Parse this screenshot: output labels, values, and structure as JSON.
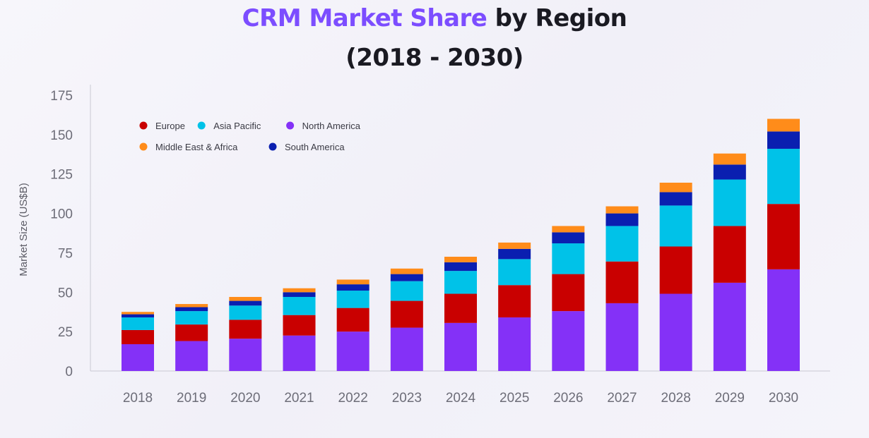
{
  "title": {
    "highlight": "CRM Market Share",
    "rest": " by Region",
    "line2": "(2018 - 2030)"
  },
  "chart_data": {
    "type": "bar",
    "stacked": true,
    "categories": [
      "2018",
      "2019",
      "2020",
      "2021",
      "2022",
      "2023",
      "2024",
      "2025",
      "2026",
      "2027",
      "2028",
      "2029",
      "2030"
    ],
    "ylabel": "Market Size (US$B)",
    "xlabel": "",
    "ylim": [
      0,
      175
    ],
    "yticks": [
      0,
      25,
      50,
      75,
      100,
      125,
      150,
      175
    ],
    "legend_position": "top-left",
    "series": [
      {
        "name": "North America",
        "color": "#8431f7",
        "values": [
          17,
          19,
          20.5,
          22.5,
          25,
          27.5,
          30.5,
          34,
          38,
          43,
          49,
          56,
          64.5
        ]
      },
      {
        "name": "Europe",
        "color": "#c90000",
        "values": [
          9,
          10.5,
          12,
          13,
          15,
          17,
          18.5,
          20.5,
          23.5,
          26.5,
          30,
          36,
          41.5
        ]
      },
      {
        "name": "Asia Pacific",
        "color": "#00c2e8",
        "values": [
          8,
          8.5,
          9,
          11.5,
          11,
          12.5,
          14.5,
          16.5,
          19.5,
          22.5,
          26,
          29.5,
          35
        ]
      },
      {
        "name": "South America",
        "color": "#0a1fb0",
        "values": [
          2,
          2.5,
          3,
          3,
          4,
          4.5,
          5.5,
          6.5,
          7,
          8,
          8.5,
          9.5,
          11
        ]
      },
      {
        "name": "Middle East & Africa",
        "color": "#ff8c1a",
        "values": [
          1.5,
          2,
          2.5,
          2.5,
          3,
          3.5,
          3.5,
          4,
          4,
          4.5,
          6,
          7,
          8
        ]
      }
    ],
    "legend_order": [
      "Europe",
      "Asia Pacific",
      "North America",
      "Middle East & Africa",
      "South America"
    ]
  }
}
